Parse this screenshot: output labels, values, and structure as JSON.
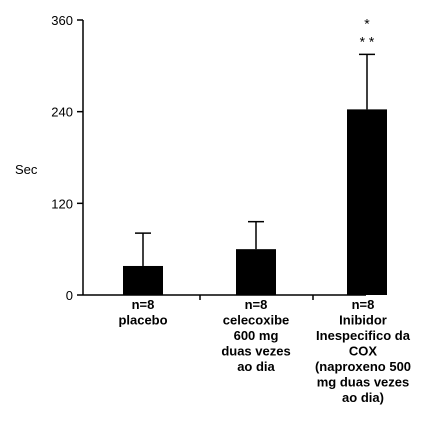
{
  "chart_data": {
    "type": "bar",
    "ylabel": "Sec",
    "ylim": [
      0,
      360
    ],
    "yticks": [
      0,
      120,
      240,
      360
    ],
    "categories": [
      [
        "n=8",
        "placebo"
      ],
      [
        "n=8",
        "celecoxibe",
        "600 mg",
        "duas vezes",
        "ao dia"
      ],
      [
        "n=8",
        "Inibidor",
        "Inespecifico da",
        "COX",
        "(naproxeno 500",
        "mg duas vezes",
        "ao dia)"
      ]
    ],
    "values": [
      38,
      60,
      243
    ],
    "error_upper": [
      81,
      96,
      315
    ],
    "annotations": [
      {
        "category_index": 2,
        "lines": [
          "*",
          "* *"
        ]
      }
    ],
    "grid": false,
    "legend": "none",
    "bar_color": "#000000"
  }
}
